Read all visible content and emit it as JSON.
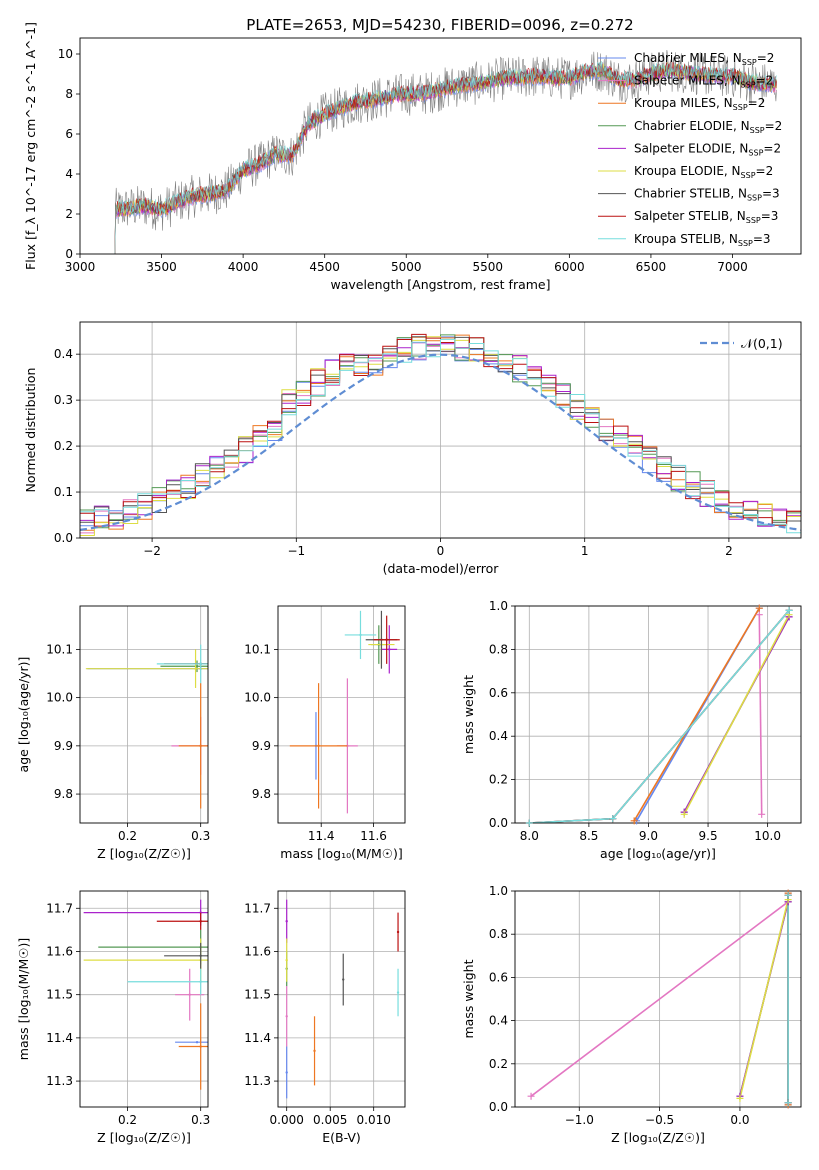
{
  "title": "PLATE=2653, MJD=54230, FIBERID=0096, z=0.272",
  "series_names": [
    "Chabrier MILES, N_SSP=2",
    "Salpeter MILES, N_SSP=2",
    "Kroupa MILES, N_SSP=2",
    "Chabrier ELODIE, N_SSP=2",
    "Salpeter ELODIE, N_SSP=2",
    "Kroupa ELODIE, N_SSP=2",
    "Chabrier STELIB, N_SSP=3",
    "Salpeter STELIB, N_SSP=3",
    "Kroupa STELIB, N_SSP=3"
  ],
  "colors": {
    "series": [
      "#6688ee",
      "#e377c2",
      "#ee7722",
      "#559955",
      "#aa22cc",
      "#dddd44",
      "#555555",
      "#bb1111",
      "#77dddd"
    ],
    "observed": "#808080",
    "normal": "#5f8dd3"
  },
  "chart_data": [
    {
      "type": "line",
      "id": "spectrum",
      "title": "PLATE=2653, MJD=54230, FIBERID=0096, z=0.272",
      "xlabel": "wavelength [Angstrom, rest frame]",
      "ylabel": "Flux [f_λ 10^-17 erg cm^-2 s^-1 A^-1]",
      "xlim": [
        3000,
        7420
      ],
      "ylim": [
        0,
        10.8
      ],
      "xticks": [
        3000,
        3500,
        4000,
        4500,
        5000,
        5500,
        6000,
        6500,
        7000
      ],
      "yticks": [
        0,
        2,
        4,
        6,
        8,
        10
      ],
      "x_range": [
        3210,
        7270
      ],
      "continuum": {
        "x": [
          3210,
          3300,
          3400,
          3500,
          3600,
          3700,
          3800,
          3900,
          4000,
          4100,
          4200,
          4300,
          4400,
          4500,
          4600,
          4700,
          4800,
          4900,
          5000,
          5100,
          5200,
          5300,
          5400,
          5500,
          5600,
          5700,
          5800,
          5900,
          6000,
          6100,
          6200,
          6300,
          6400,
          6500,
          6600,
          6700,
          6800,
          6900,
          7000,
          7100,
          7200,
          7270
        ],
        "y": [
          2.2,
          2.3,
          2.4,
          2.2,
          2.6,
          2.9,
          3.0,
          3.2,
          4.2,
          4.5,
          5.0,
          4.9,
          6.5,
          7.0,
          7.3,
          7.6,
          7.7,
          7.9,
          8.0,
          8.0,
          8.2,
          8.4,
          8.5,
          8.6,
          8.8,
          8.8,
          8.9,
          8.8,
          8.8,
          9.1,
          9.2,
          8.7,
          8.7,
          9.0,
          9.2,
          9.1,
          9.0,
          8.9,
          8.9,
          8.6,
          8.5,
          8.5
        ]
      },
      "grid": false,
      "legend": "top-right"
    },
    {
      "type": "bar",
      "id": "residuals",
      "xlabel": "(data-model)/error",
      "ylabel": "Normed distribution",
      "xlim": [
        -2.5,
        2.5
      ],
      "ylim": [
        0,
        0.47
      ],
      "xticks": [
        -2,
        -1,
        0,
        1,
        2
      ],
      "yticks": [
        0.0,
        0.1,
        0.2,
        0.3,
        0.4
      ],
      "bin_width": 0.1,
      "bins_start": -2.5,
      "grid": true,
      "legend": "top-right",
      "normal_label": "𝒩(0,1)"
    },
    {
      "type": "scatter",
      "id": "age-z",
      "xlabel": "Z [log₁₀(Z/Z☉)]",
      "ylabel": "age [log₁₀(age/yr)]",
      "xlim": [
        0.135,
        0.31
      ],
      "ylim": [
        9.74,
        10.19
      ],
      "xticks": [
        0.2,
        0.3
      ],
      "yticks": [
        9.8,
        9.9,
        10.0,
        10.1
      ],
      "grid": true,
      "points": [
        {
          "x": 0.3,
          "y": 10.06,
          "xerr": 0.155,
          "yerr": 0.0
        },
        {
          "x": 0.3,
          "y": 9.9,
          "xerr": 0.04,
          "yerr": 0.06
        },
        {
          "x": 0.3,
          "y": 9.9,
          "xerr": 0.03,
          "yerr": 0.13
        },
        {
          "x": 0.295,
          "y": 10.065,
          "xerr": 0.05,
          "yerr": 0.012
        },
        {
          "x": 0.3,
          "y": 10.07,
          "xerr": 0.0,
          "yerr": 0.0
        },
        {
          "x": 0.293,
          "y": 10.06,
          "xerr": 0.15,
          "yerr": 0.04
        },
        {
          "x": 0.3,
          "y": 10.07,
          "xerr": 0.01,
          "yerr": 0.0
        },
        {
          "x": 0.3,
          "y": 10.07,
          "xerr": 0.05,
          "yerr": 0.0
        },
        {
          "x": 0.3,
          "y": 10.07,
          "xerr": 0.06,
          "yerr": 0.04
        }
      ]
    },
    {
      "type": "scatter",
      "id": "age-mass",
      "xlabel": "mass [log₁₀(M/M☉)]",
      "ylabel": "",
      "xlim": [
        11.235,
        11.72
      ],
      "ylim": [
        9.74,
        10.19
      ],
      "xticks": [
        11.4,
        11.6
      ],
      "yticks": [
        9.8,
        9.9,
        10.0,
        10.1
      ],
      "grid": true,
      "points": [
        {
          "x": 11.38,
          "y": 9.9,
          "xerr": 0.0,
          "yerr": 0.07
        },
        {
          "x": 11.5,
          "y": 9.9,
          "xerr": 0.04,
          "yerr": 0.14
        },
        {
          "x": 11.39,
          "y": 9.9,
          "xerr": 0.11,
          "yerr": 0.13
        },
        {
          "x": 11.62,
          "y": 10.11,
          "xerr": 0.03,
          "yerr": 0.04
        },
        {
          "x": 11.66,
          "y": 10.1,
          "xerr": 0.03,
          "yerr": 0.05
        },
        {
          "x": 11.63,
          "y": 10.11,
          "xerr": 0.05,
          "yerr": 0.04
        },
        {
          "x": 11.63,
          "y": 10.12,
          "xerr": 0.06,
          "yerr": 0.06
        },
        {
          "x": 11.65,
          "y": 10.12,
          "xerr": 0.05,
          "yerr": 0.05
        },
        {
          "x": 11.55,
          "y": 10.13,
          "xerr": 0.06,
          "yerr": 0.05
        }
      ]
    },
    {
      "type": "line",
      "id": "massweight-age",
      "xlabel": "age [log₁₀(age/yr)]",
      "ylabel": "mass weight",
      "xlim": [
        7.88,
        10.28
      ],
      "ylim": [
        0,
        1.0
      ],
      "xticks": [
        8.0,
        8.5,
        9.0,
        9.5,
        10.0
      ],
      "yticks": [
        0.0,
        0.2,
        0.4,
        0.6,
        0.8,
        1.0
      ],
      "grid": true,
      "lines": [
        {
          "x": [
            8.9,
            9.93
          ],
          "y": [
            0.01,
            0.99
          ]
        },
        {
          "x": [
            9.95,
            9.93
          ],
          "y": [
            0.04,
            0.96
          ]
        },
        {
          "x": [
            8.88,
            9.93
          ],
          "y": [
            0.01,
            0.99
          ]
        },
        {
          "x": [
            9.3,
            10.18
          ],
          "y": [
            0.05,
            0.95
          ]
        },
        {
          "x": [
            9.3,
            10.18
          ],
          "y": [
            0.05,
            0.95
          ]
        },
        {
          "x": [
            9.3,
            10.18
          ],
          "y": [
            0.04,
            0.96
          ]
        },
        {
          "x": [
            8.0,
            8.7,
            10.18
          ],
          "y": [
            0.0,
            0.02,
            0.98
          ]
        },
        {
          "x": [
            8.0,
            8.7,
            10.18
          ],
          "y": [
            0.0,
            0.02,
            0.98
          ]
        },
        {
          "x": [
            8.0,
            8.7,
            10.18
          ],
          "y": [
            0.0,
            0.02,
            0.98
          ]
        }
      ]
    },
    {
      "type": "scatter",
      "id": "mass-z",
      "xlabel": "Z [log₁₀(Z/Z☉)]",
      "ylabel": "mass [log₁₀(M/M☉)]",
      "xlim": [
        0.135,
        0.31
      ],
      "ylim": [
        11.24,
        11.74
      ],
      "xticks": [
        0.2,
        0.3
      ],
      "yticks": [
        11.3,
        11.4,
        11.5,
        11.6,
        11.7
      ],
      "grid": true,
      "points": [
        {
          "x": 0.295,
          "y": 11.39,
          "xerr": 0.03,
          "yerr": 0.0
        },
        {
          "x": 0.285,
          "y": 11.5,
          "xerr": 0.02,
          "yerr": 0.06
        },
        {
          "x": 0.3,
          "y": 11.38,
          "xerr": 0.03,
          "yerr": 0.1
        },
        {
          "x": 0.3,
          "y": 11.61,
          "xerr": 0.14,
          "yerr": 0.04
        },
        {
          "x": 0.3,
          "y": 11.69,
          "xerr": 0.16,
          "yerr": 0.03
        },
        {
          "x": 0.3,
          "y": 11.58,
          "xerr": 0.16,
          "yerr": 0.05
        },
        {
          "x": 0.3,
          "y": 11.59,
          "xerr": 0.05,
          "yerr": 0.03
        },
        {
          "x": 0.3,
          "y": 11.67,
          "xerr": 0.06,
          "yerr": 0.02
        },
        {
          "x": 0.3,
          "y": 11.53,
          "xerr": 0.1,
          "yerr": 0.03
        }
      ]
    },
    {
      "type": "scatter",
      "id": "mass-ebv",
      "xlabel": "E(B-V)",
      "ylabel": "",
      "xlim": [
        -0.001,
        0.0136
      ],
      "ylim": [
        11.24,
        11.74
      ],
      "xticks": [
        0.0,
        0.005,
        0.01
      ],
      "yticks": [
        11.3,
        11.4,
        11.5,
        11.6,
        11.7
      ],
      "grid": true,
      "points": [
        {
          "x": 0.0,
          "y": 11.32,
          "xerr": 0,
          "yerr": 0.06
        },
        {
          "x": 0.0,
          "y": 11.45,
          "xerr": 0,
          "yerr": 0.07
        },
        {
          "x": 0.0032,
          "y": 11.37,
          "xerr": 0,
          "yerr": 0.08
        },
        {
          "x": 0.0,
          "y": 11.56,
          "xerr": 0,
          "yerr": 0.04
        },
        {
          "x": 0.0,
          "y": 11.67,
          "xerr": 0,
          "yerr": 0.05
        },
        {
          "x": 0.0,
          "y": 11.58,
          "xerr": 0,
          "yerr": 0.05
        },
        {
          "x": 0.0065,
          "y": 11.535,
          "xerr": 0,
          "yerr": 0.06
        },
        {
          "x": 0.0128,
          "y": 11.645,
          "xerr": 0,
          "yerr": 0.045
        },
        {
          "x": 0.0128,
          "y": 11.505,
          "xerr": 0,
          "yerr": 0.055
        }
      ]
    },
    {
      "type": "line",
      "id": "massweight-z",
      "xlabel": "Z [log₁₀(Z/Z☉)]",
      "ylabel": "mass weight",
      "xlim": [
        -1.4,
        0.38
      ],
      "ylim": [
        0,
        1.0
      ],
      "xticks": [
        -1.0,
        -0.5,
        0.0
      ],
      "yticks": [
        0.0,
        0.2,
        0.4,
        0.6,
        0.8,
        1.0
      ],
      "grid": true,
      "lines": [
        {
          "x": [
            0.3,
            0.3
          ],
          "y": [
            0.01,
            0.99
          ]
        },
        {
          "x": [
            -1.3,
            0.3
          ],
          "y": [
            0.05,
            0.95
          ]
        },
        {
          "x": [
            0.3,
            0.3
          ],
          "y": [
            0.01,
            0.99
          ]
        },
        {
          "x": [
            0.0,
            0.3
          ],
          "y": [
            0.05,
            0.95
          ]
        },
        {
          "x": [
            0.0,
            0.3
          ],
          "y": [
            0.05,
            0.95
          ]
        },
        {
          "x": [
            0.0,
            0.3
          ],
          "y": [
            0.04,
            0.96
          ]
        },
        {
          "x": [
            0.3,
            0.3
          ],
          "y": [
            0.02,
            0.98
          ]
        },
        {
          "x": [
            0.3,
            0.3
          ],
          "y": [
            0.02,
            0.98
          ]
        },
        {
          "x": [
            0.3,
            0.3
          ],
          "y": [
            0.02,
            0.98
          ]
        }
      ]
    }
  ]
}
